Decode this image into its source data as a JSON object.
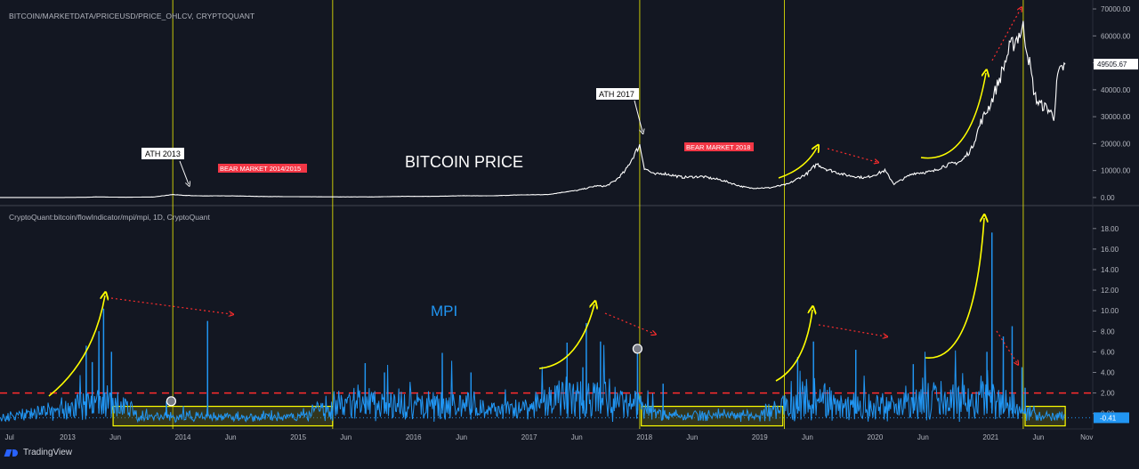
{
  "price_pane": {
    "symbol": "BITCOIN/MARKETDATA/PRICEUSD/PRICE_OHLCV, CRYPTOQUANT",
    "title": "BITCOIN PRICE",
    "last_value": "49505.67",
    "annotations": [
      "ATH 2013",
      "ATH 2017"
    ],
    "bear_labels": [
      "BEAR MARKET 2014/2015",
      "BEAR MARKET 2018"
    ]
  },
  "mpi_pane": {
    "symbol": "CryptoQuant:bitcoin/flowIndicator/mpi/mpi, 1D, CryptoQuant",
    "title": "MPI",
    "last_value": "-0.41"
  },
  "footer": {
    "brand": "TradingView"
  },
  "colors": {
    "background": "#131722",
    "price_line": "#ffffff",
    "mpi_line": "#2196f3",
    "highlight": "#ffff00",
    "bear_label": "#f23645",
    "threshold": "#ff2d2d"
  },
  "chart_data": [
    {
      "type": "line",
      "name": "price",
      "yaxis_ticks": [
        "0.00",
        "10000.00",
        "20000.00",
        "30000.00",
        "40000.00",
        "50000.00",
        "60000.00",
        "70000.00"
      ],
      "ylim": [
        -2000,
        72000
      ],
      "series": [
        {
          "x": [
            "2012-06",
            "2012-09",
            "2012-12",
            "2013-03",
            "2013-04",
            "2013-07",
            "2013-10",
            "2013-11-30",
            "2014-01",
            "2014-03",
            "2014-06",
            "2014-09",
            "2014-12",
            "2015-03",
            "2015-06",
            "2015-09",
            "2015-12",
            "2016-03",
            "2016-06",
            "2016-09",
            "2016-12",
            "2017-03",
            "2017-05",
            "2017-06",
            "2017-08",
            "2017-09",
            "2017-10",
            "2017-11",
            "2017-12-17",
            "2018-01",
            "2018-02",
            "2018-03",
            "2018-05",
            "2018-07",
            "2018-09",
            "2018-11",
            "2018-12",
            "2019-02",
            "2019-04",
            "2019-06",
            "2019-07",
            "2019-08",
            "2019-10",
            "2019-12",
            "2020-01",
            "2020-02",
            "2020-03",
            "2020-05",
            "2020-07",
            "2020-08",
            "2020-10",
            "2020-11",
            "2020-12",
            "2021-01",
            "2021-02",
            "2021-03",
            "2021-04-14",
            "2021-05",
            "2021-05-20",
            "2021-06",
            "2021-07",
            "2021-07-20",
            "2021-08",
            "2021-08-25"
          ],
          "values": [
            6,
            11,
            13,
            90,
            230,
            100,
            200,
            1100,
            800,
            600,
            620,
            400,
            320,
            260,
            230,
            230,
            430,
            420,
            670,
            610,
            960,
            1100,
            2200,
            2600,
            4300,
            4200,
            6300,
            9800,
            19500,
            11000,
            8500,
            9000,
            7500,
            7800,
            6500,
            4200,
            3500,
            3600,
            5000,
            9000,
            12500,
            10500,
            8300,
            7300,
            8500,
            10000,
            5000,
            9000,
            9600,
            11500,
            13500,
            18000,
            28000,
            35000,
            45000,
            55000,
            63000,
            52000,
            38000,
            35000,
            33000,
            30000,
            45000,
            49505.67
          ]
        }
      ]
    },
    {
      "type": "line",
      "name": "mpi",
      "yaxis_ticks": [
        "0.00",
        "2.00",
        "4.00",
        "6.00",
        "8.00",
        "10.00",
        "12.00",
        "14.00",
        "16.00",
        "18.00"
      ],
      "ylim": [
        -1.5,
        19.8
      ],
      "threshold": 2.0,
      "last_value": -0.41,
      "x_ticks": [
        "Jul",
        "2013",
        "Jun",
        "2014",
        "Jun",
        "2015",
        "Jun",
        "2016",
        "Jun",
        "2017",
        "Jun",
        "2018",
        "Jun",
        "2019",
        "Jun",
        "2020",
        "Jun",
        "2021",
        "Jun",
        "Nov"
      ],
      "x_tick_dates": [
        "2012-07",
        "2013-01",
        "2013-06",
        "2014-01",
        "2014-06",
        "2015-01",
        "2015-06",
        "2016-01",
        "2016-06",
        "2017-01",
        "2017-06",
        "2018-01",
        "2018-06",
        "2019-01",
        "2019-06",
        "2020-01",
        "2020-06",
        "2021-01",
        "2021-06",
        "2021-11"
      ],
      "series": [
        {
          "x": [
            "2013-03",
            "2013-03-20",
            "2013-04-10",
            "2013-04-25",
            "2013-05-20",
            "2013-11-10",
            "2014-03-20",
            "2015-08",
            "2015-10",
            "2016-04",
            "2016-07",
            "2017-05",
            "2017-06-20",
            "2017-07",
            "2017-08-15",
            "2017-12-10",
            "2018-03",
            "2019-05",
            "2019-06-20",
            "2019-11",
            "2020-05",
            "2020-12-20",
            "2021-01-05",
            "2021-02-10",
            "2021-03-10",
            "2021-04-10",
            "2021-04-20"
          ],
          "values": [
            6.6,
            5.0,
            8.0,
            10.2,
            6.0,
            1.2,
            9.0,
            4.9,
            4.0,
            5.9,
            4.0,
            6.9,
            4.5,
            8.8,
            7.0,
            6.4,
            2.9,
            5.5,
            7.0,
            6.2,
            4.8,
            6.0,
            17.6,
            7.5,
            8.5,
            4.5,
            2.5
          ]
        }
      ]
    }
  ]
}
